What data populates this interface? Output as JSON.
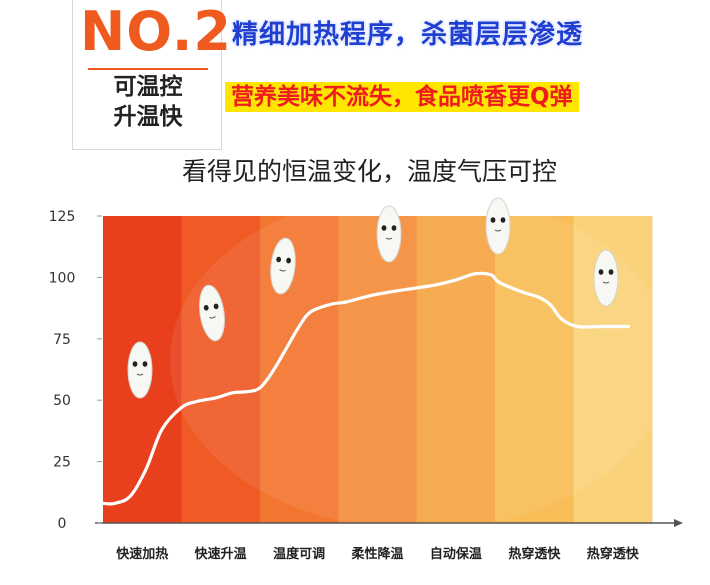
{
  "badge": {
    "number": "NO.2",
    "line1": "可温控",
    "line2": "升温快"
  },
  "headline": "精细加热程序，杀菌层层渗透",
  "subheadline": "营养美味不流失，食品喷香更Q弹",
  "colors": {
    "accent_orange": "#ef5a1f",
    "headline_blue": "#1f3fd0",
    "sub_red": "#ee1c1c",
    "sub_highlight": "#ffe600",
    "curve": "#ffffff"
  },
  "chart_data": {
    "type": "line",
    "title": "看得见的恒温变化，温度气压可控",
    "categories": [
      "快速加热",
      "快速升温",
      "温度可调",
      "柔性降温",
      "自动保温",
      "热穿透快",
      "热穿透快"
    ],
    "band_colors": [
      "#e8401c",
      "#ef5a25",
      "#f2762f",
      "#f48c3a",
      "#f6a545",
      "#f8bd56",
      "#fad27a"
    ],
    "y_ticks": [
      0,
      25,
      50,
      75,
      100,
      125
    ],
    "ylim": [
      0,
      125
    ],
    "grid": false,
    "x": [
      0.0,
      0.15,
      0.35,
      0.55,
      0.75,
      1.0,
      1.2,
      1.45,
      1.65,
      1.85,
      2.0,
      2.15,
      2.3,
      2.5,
      2.65,
      2.9,
      3.1,
      3.4,
      3.65,
      3.95,
      4.25,
      4.5,
      4.75,
      4.95,
      5.05,
      5.35,
      5.55,
      5.7,
      5.85,
      6.05,
      6.35,
      6.7
    ],
    "y": [
      8,
      8,
      11,
      22,
      38,
      47,
      49.5,
      51,
      53,
      53.5,
      55,
      61,
      69,
      80,
      86,
      89,
      90,
      92.5,
      94,
      95.5,
      97,
      99,
      101.5,
      101,
      98,
      94,
      92,
      89,
      83,
      80,
      80,
      80
    ],
    "xlabel": "",
    "ylabel": ""
  }
}
